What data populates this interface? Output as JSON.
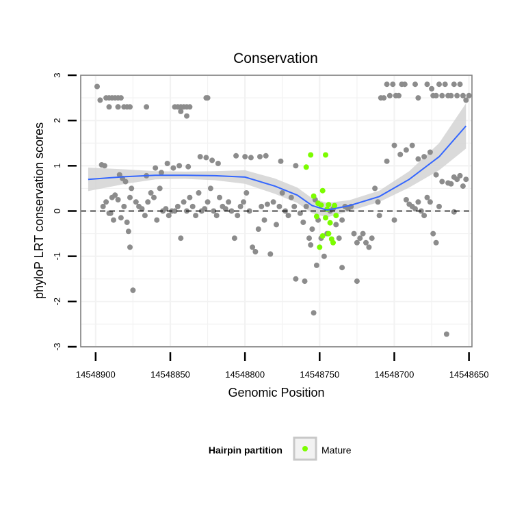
{
  "chart_data": {
    "type": "scatter",
    "title": "Conservation",
    "xlabel": "Genomic Position",
    "ylabel": "phyloP LRT conservation scores",
    "x_reversed": true,
    "xlim": [
      14548648,
      14548910
    ],
    "ylim": [
      -3,
      3
    ],
    "x_ticks": [
      14548900,
      14548850,
      14548800,
      14548750,
      14548700,
      14548650
    ],
    "x_tick_labels": [
      "14548900",
      "14548850",
      "14548800",
      "14548750",
      "14548700",
      "14548650"
    ],
    "y_ticks": [
      -3,
      -2,
      -1,
      0,
      1,
      2,
      3
    ],
    "y_tick_labels": [
      "-3",
      "-2",
      "-1",
      "0",
      "1",
      "2",
      "3"
    ],
    "reference_line": {
      "y": 0,
      "style": "dashed"
    },
    "colors": {
      "background_points": "#8c8c8c",
      "mature_points": "#7cfc00",
      "smooth_line": "#3366ff",
      "confidence_band": "#d3d3d3",
      "grid": "#f2f2f2",
      "panel_border": "#7f7f7f"
    },
    "legend": {
      "title": "Hairpin partition",
      "entries": [
        "Mature"
      ],
      "position": "bottom"
    },
    "smooth": {
      "x": [
        14548905,
        14548880,
        14548860,
        14548840,
        14548820,
        14548800,
        14548780,
        14548765,
        14548755,
        14548745,
        14548730,
        14548710,
        14548690,
        14548670,
        14548652
      ],
      "y": [
        0.7,
        0.76,
        0.79,
        0.79,
        0.78,
        0.75,
        0.55,
        0.35,
        0.12,
        0.02,
        0.12,
        0.32,
        0.7,
        1.2,
        1.88
      ],
      "lower": [
        0.44,
        0.6,
        0.7,
        0.71,
        0.68,
        0.6,
        0.38,
        0.18,
        -0.05,
        -0.14,
        0.0,
        0.2,
        0.52,
        0.9,
        1.38
      ],
      "upper": [
        0.96,
        0.92,
        0.88,
        0.87,
        0.88,
        0.9,
        0.72,
        0.52,
        0.28,
        0.18,
        0.24,
        0.45,
        0.88,
        1.5,
        2.38
      ]
    },
    "series": [
      {
        "name": "Background",
        "points": [
          [
            14548899,
            2.75
          ],
          [
            14548897,
            2.45
          ],
          [
            14548893,
            2.5
          ],
          [
            14548891,
            2.5
          ],
          [
            14548889,
            2.5
          ],
          [
            14548887,
            2.5
          ],
          [
            14548885,
            2.5
          ],
          [
            14548885,
            2.3
          ],
          [
            14548881,
            2.3
          ],
          [
            14548879,
            2.3
          ],
          [
            14548877,
            2.3
          ],
          [
            14548891,
            2.3
          ],
          [
            14548885,
            2.3
          ],
          [
            14548883,
            2.5
          ],
          [
            14548866,
            2.3
          ],
          [
            14548847,
            2.3
          ],
          [
            14548845,
            2.3
          ],
          [
            14548843,
            2.3
          ],
          [
            14548841,
            2.3
          ],
          [
            14548839,
            2.3
          ],
          [
            14548837,
            2.3
          ],
          [
            14548843,
            2.2
          ],
          [
            14548839,
            2.1
          ],
          [
            14548826,
            2.5
          ],
          [
            14548825,
            2.5
          ],
          [
            14548896,
            1.02
          ],
          [
            14548894,
            1.0
          ],
          [
            14548884,
            0.8
          ],
          [
            14548882,
            0.72
          ],
          [
            14548880,
            0.65
          ],
          [
            14548876,
            0.5
          ],
          [
            14548866,
            0.78
          ],
          [
            14548860,
            0.95
          ],
          [
            14548856,
            0.85
          ],
          [
            14548852,
            1.05
          ],
          [
            14548848,
            0.95
          ],
          [
            14548844,
            1.0
          ],
          [
            14548838,
            0.98
          ],
          [
            14548830,
            1.2
          ],
          [
            14548826,
            1.18
          ],
          [
            14548822,
            1.12
          ],
          [
            14548818,
            1.05
          ],
          [
            14548806,
            1.22
          ],
          [
            14548800,
            1.2
          ],
          [
            14548796,
            1.18
          ],
          [
            14548790,
            1.2
          ],
          [
            14548786,
            1.22
          ],
          [
            14548776,
            1.1
          ],
          [
            14548766,
            1.0
          ],
          [
            14548895,
            0.1
          ],
          [
            14548893,
            0.2
          ],
          [
            14548891,
            -0.05
          ],
          [
            14548889,
            0.3
          ],
          [
            14548887,
            0.35
          ],
          [
            14548885,
            0.25
          ],
          [
            14548883,
            -0.15
          ],
          [
            14548881,
            0.1
          ],
          [
            14548879,
            -0.25
          ],
          [
            14548877,
            0.3
          ],
          [
            14548873,
            0.2
          ],
          [
            14548871,
            0.1
          ],
          [
            14548869,
            0.05
          ],
          [
            14548867,
            -0.1
          ],
          [
            14548865,
            0.2
          ],
          [
            14548863,
            0.4
          ],
          [
            14548861,
            0.3
          ],
          [
            14548859,
            -0.2
          ],
          [
            14548857,
            0.5
          ],
          [
            14548855,
            0.0
          ],
          [
            14548853,
            0.05
          ],
          [
            14548851,
            -0.1
          ],
          [
            14548849,
            0.0
          ],
          [
            14548847,
            0.0
          ],
          [
            14548845,
            0.1
          ],
          [
            14548843,
            -0.6
          ],
          [
            14548841,
            0.2
          ],
          [
            14548839,
            0.0
          ],
          [
            14548837,
            0.3
          ],
          [
            14548835,
            0.1
          ],
          [
            14548833,
            -0.1
          ],
          [
            14548831,
            0.4
          ],
          [
            14548829,
            0.0
          ],
          [
            14548827,
            0.05
          ],
          [
            14548825,
            0.2
          ],
          [
            14548823,
            0.5
          ],
          [
            14548821,
            0.0
          ],
          [
            14548819,
            -0.1
          ],
          [
            14548817,
            0.3
          ],
          [
            14548815,
            0.1
          ],
          [
            14548813,
            0.05
          ],
          [
            14548811,
            0.2
          ],
          [
            14548809,
            0.0
          ],
          [
            14548807,
            -0.6
          ],
          [
            14548805,
            -0.1
          ],
          [
            14548803,
            0.1
          ],
          [
            14548801,
            0.2
          ],
          [
            14548799,
            0.4
          ],
          [
            14548797,
            0.0
          ],
          [
            14548795,
            -0.8
          ],
          [
            14548793,
            -0.9
          ],
          [
            14548791,
            -0.4
          ],
          [
            14548789,
            0.1
          ],
          [
            14548787,
            -0.2
          ],
          [
            14548785,
            0.15
          ],
          [
            14548783,
            -0.95
          ],
          [
            14548781,
            0.2
          ],
          [
            14548779,
            -0.3
          ],
          [
            14548777,
            0.1
          ],
          [
            14548775,
            0.4
          ],
          [
            14548773,
            0.0
          ],
          [
            14548771,
            -0.1
          ],
          [
            14548769,
            0.3
          ],
          [
            14548767,
            0.1
          ],
          [
            14548763,
            -0.05
          ],
          [
            14548761,
            -0.25
          ],
          [
            14548759,
            0.1
          ],
          [
            14548757,
            -0.6
          ],
          [
            14548755,
            -0.4
          ],
          [
            14548753,
            0.25
          ],
          [
            14548751,
            -0.2
          ],
          [
            14548749,
            -0.6
          ],
          [
            14548747,
            -1.0
          ],
          [
            14548745,
            -0.5
          ],
          [
            14548743,
            0.0
          ],
          [
            14548741,
            0.05
          ],
          [
            14548739,
            -0.3
          ],
          [
            14548737,
            -0.6
          ],
          [
            14548735,
            -0.2
          ],
          [
            14548733,
            0.1
          ],
          [
            14548731,
            0.05
          ],
          [
            14548729,
            0.1
          ],
          [
            14548727,
            -0.5
          ],
          [
            14548725,
            -0.7
          ],
          [
            14548723,
            -0.6
          ],
          [
            14548721,
            -0.5
          ],
          [
            14548719,
            -0.7
          ],
          [
            14548717,
            -0.8
          ],
          [
            14548715,
            -0.6
          ],
          [
            14548713,
            0.5
          ],
          [
            14548711,
            0.2
          ],
          [
            14548877,
            -0.8
          ],
          [
            14548878,
            -0.45
          ],
          [
            14548875,
            -1.75
          ],
          [
            14548890,
            -0.05
          ],
          [
            14548888,
            -0.2
          ],
          [
            14548766,
            -1.5
          ],
          [
            14548760,
            -1.55
          ],
          [
            14548756,
            -0.75
          ],
          [
            14548754,
            -2.25
          ],
          [
            14548752,
            -1.2
          ],
          [
            14548735,
            -1.25
          ],
          [
            14548725,
            -1.55
          ],
          [
            14548710,
            -0.1
          ],
          [
            14548700,
            -0.2
          ],
          [
            14548692,
            0.25
          ],
          [
            14548690,
            0.15
          ],
          [
            14548688,
            0.1
          ],
          [
            14548686,
            0.05
          ],
          [
            14548684,
            0.2
          ],
          [
            14548682,
            0.0
          ],
          [
            14548680,
            -0.1
          ],
          [
            14548678,
            0.3
          ],
          [
            14548676,
            0.2
          ],
          [
            14548674,
            -0.5
          ],
          [
            14548672,
            -0.7
          ],
          [
            14548670,
            0.1
          ],
          [
            14548705,
            1.1
          ],
          [
            14548700,
            1.45
          ],
          [
            14548696,
            1.25
          ],
          [
            14548692,
            1.35
          ],
          [
            14548688,
            1.45
          ],
          [
            14548684,
            1.15
          ],
          [
            14548680,
            1.2
          ],
          [
            14548676,
            1.3
          ],
          [
            14548672,
            0.8
          ],
          [
            14548668,
            0.65
          ],
          [
            14548664,
            0.62
          ],
          [
            14548660,
            0.75
          ],
          [
            14548658,
            0.7
          ],
          [
            14548656,
            0.78
          ],
          [
            14548654,
            0.55
          ],
          [
            14548652,
            0.7
          ],
          [
            14548709,
            2.5
          ],
          [
            14548707,
            2.5
          ],
          [
            14548705,
            2.8
          ],
          [
            14548703,
            2.55
          ],
          [
            14548701,
            2.8
          ],
          [
            14548699,
            2.55
          ],
          [
            14548697,
            2.55
          ],
          [
            14548695,
            2.8
          ],
          [
            14548693,
            2.8
          ],
          [
            14548686,
            2.8
          ],
          [
            14548684,
            2.5
          ],
          [
            14548678,
            2.8
          ],
          [
            14548674,
            2.55
          ],
          [
            14548670,
            2.8
          ],
          [
            14548668,
            2.55
          ],
          [
            14548666,
            2.8
          ],
          [
            14548664,
            2.55
          ],
          [
            14548662,
            2.55
          ],
          [
            14548660,
            2.8
          ],
          [
            14548658,
            2.55
          ],
          [
            14548656,
            2.8
          ],
          [
            14548654,
            2.55
          ],
          [
            14548652,
            2.45
          ],
          [
            14548650,
            2.55
          ],
          [
            14548662,
            0.6
          ],
          [
            14548660,
            -0.02
          ],
          [
            14548665,
            -2.72
          ],
          [
            14548675,
            2.7
          ],
          [
            14548672,
            2.55
          ]
        ]
      },
      {
        "name": "Mature",
        "points": [
          [
            14548759,
            0.97
          ],
          [
            14548756,
            1.24
          ],
          [
            14548754,
            0.33
          ],
          [
            14548751,
            0.17
          ],
          [
            14548749,
            0.13
          ],
          [
            14548748,
            -0.55
          ],
          [
            14548746,
            1.24
          ],
          [
            14548744,
            0.14
          ],
          [
            14548743,
            -0.26
          ],
          [
            14548742,
            -0.62
          ],
          [
            14548741,
            -0.7
          ],
          [
            14548740,
            0.12
          ],
          [
            14548745,
            0.04
          ],
          [
            14548752,
            -0.12
          ],
          [
            14548750,
            -0.8
          ],
          [
            14548748,
            0.45
          ],
          [
            14548746,
            -0.15
          ],
          [
            14548744,
            -0.5
          ],
          [
            14548739,
            -0.1
          ]
        ]
      }
    ]
  }
}
